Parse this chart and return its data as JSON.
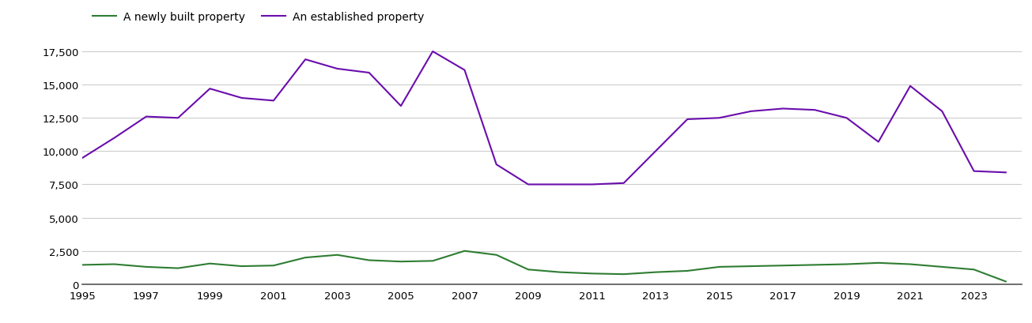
{
  "years": [
    1995,
    1996,
    1997,
    1998,
    1999,
    2000,
    2001,
    2002,
    2003,
    2004,
    2005,
    2006,
    2007,
    2008,
    2009,
    2010,
    2011,
    2012,
    2013,
    2014,
    2015,
    2016,
    2017,
    2018,
    2019,
    2020,
    2021,
    2022,
    2023,
    2024
  ],
  "new_build": [
    1450,
    1500,
    1300,
    1200,
    1550,
    1350,
    1400,
    2000,
    2200,
    1800,
    1700,
    1750,
    2500,
    2200,
    1100,
    900,
    800,
    750,
    900,
    1000,
    1300,
    1350,
    1400,
    1450,
    1500,
    1600,
    1500,
    1300,
    1100,
    200
  ],
  "established": [
    9500,
    11000,
    12600,
    12500,
    14700,
    14000,
    13800,
    16900,
    16200,
    15900,
    13400,
    17500,
    16100,
    9000,
    7500,
    7500,
    7500,
    7600,
    10000,
    12400,
    12500,
    13000,
    13200,
    13100,
    12500,
    10700,
    14900,
    13000,
    8500,
    8400
  ],
  "new_build_color": "#2e7d32",
  "established_color": "#6a0dad",
  "legend_new_build": "A newly built property",
  "legend_established": "An established property",
  "ylim": [
    0,
    18500
  ],
  "yticks": [
    0,
    2500,
    5000,
    7500,
    10000,
    12500,
    15000,
    17500
  ],
  "xtick_years": [
    1995,
    1997,
    1999,
    2001,
    2003,
    2005,
    2007,
    2009,
    2011,
    2013,
    2015,
    2017,
    2019,
    2021,
    2023
  ],
  "background_color": "#ffffff",
  "grid_color": "#cccccc",
  "line_width": 1.5,
  "legend_fontsize": 10,
  "tick_fontsize": 9.5
}
